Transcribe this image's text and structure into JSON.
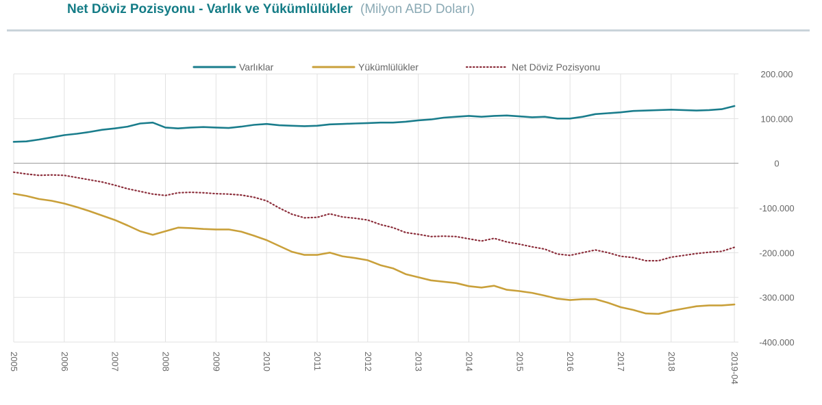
{
  "header": {
    "title": "Net Döviz Pozisyonu - Varlık ve Yükümlülükler",
    "unit": "(Milyon ABD Doları)"
  },
  "chart_data": {
    "type": "line",
    "y_ticks": [
      200000,
      100000,
      0,
      -100000,
      -200000,
      -300000,
      -400000
    ],
    "y_tick_labels": [
      "200.000",
      "100.000",
      "0",
      "-100.000",
      "-200.000",
      "-300.000",
      "-400.000"
    ],
    "ylim": [
      -400000,
      200000
    ],
    "x_ticks": [
      "2005",
      "2006",
      "2007",
      "2008",
      "2009",
      "2010",
      "2011",
      "2012",
      "2013",
      "2014",
      "2015",
      "2016",
      "2017",
      "2018",
      "2019-04"
    ],
    "x_tick_positions": [
      2005,
      2006,
      2007,
      2008,
      2009,
      2010,
      2011,
      2012,
      2013,
      2014,
      2015,
      2016,
      2017,
      2018,
      2019.25
    ],
    "xlim": [
      2005,
      2019.33
    ],
    "grid": true,
    "legend_position": "top",
    "x": [
      2005,
      2005.25,
      2005.5,
      2005.75,
      2006,
      2006.25,
      2006.5,
      2006.75,
      2007,
      2007.25,
      2007.5,
      2007.75,
      2008,
      2008.25,
      2008.5,
      2008.75,
      2009,
      2009.25,
      2009.5,
      2009.75,
      2010,
      2010.25,
      2010.5,
      2010.75,
      2011,
      2011.25,
      2011.5,
      2011.75,
      2012,
      2012.25,
      2012.5,
      2012.75,
      2013,
      2013.25,
      2013.5,
      2013.75,
      2014,
      2014.25,
      2014.5,
      2014.75,
      2015,
      2015.25,
      2015.5,
      2015.75,
      2016,
      2016.25,
      2016.5,
      2016.75,
      2017,
      2017.25,
      2017.5,
      2017.75,
      2018,
      2018.25,
      2018.5,
      2018.75,
      2019,
      2019.25
    ],
    "series": [
      {
        "name": "Varlıklar",
        "color": "#1a7d8c",
        "style": "solid",
        "values": [
          48000,
          49000,
          53000,
          58000,
          63000,
          66000,
          70000,
          75000,
          78000,
          82000,
          89000,
          91000,
          80000,
          78000,
          80000,
          81000,
          80000,
          79000,
          82000,
          86000,
          88000,
          85000,
          84000,
          83000,
          84000,
          87000,
          88000,
          89000,
          90000,
          91000,
          91000,
          93000,
          96000,
          98000,
          102000,
          104000,
          106000,
          104000,
          106000,
          107000,
          105000,
          103000,
          104000,
          100000,
          100000,
          104000,
          110000,
          112000,
          114000,
          117000,
          118000,
          119000,
          120000,
          119000,
          118000,
          119000,
          121000,
          128000
        ]
      },
      {
        "name": "Yükümlülükler",
        "color": "#c9a03a",
        "style": "solid",
        "values": [
          -68000,
          -73000,
          -80000,
          -84000,
          -90000,
          -98000,
          -107000,
          -117000,
          -127000,
          -139000,
          -152000,
          -160000,
          -152000,
          -144000,
          -145000,
          -147000,
          -148000,
          -148000,
          -153000,
          -162000,
          -172000,
          -185000,
          -198000,
          -205000,
          -205000,
          -200000,
          -208000,
          -212000,
          -217000,
          -228000,
          -235000,
          -248000,
          -255000,
          -262000,
          -265000,
          -268000,
          -275000,
          -278000,
          -274000,
          -283000,
          -286000,
          -290000,
          -296000,
          -303000,
          -306000,
          -304000,
          -304000,
          -312000,
          -322000,
          -328000,
          -336000,
          -337000,
          -330000,
          -325000,
          -320000,
          -318000,
          -318000,
          -316000
        ]
      },
      {
        "name": "Net Döviz Pozisyonu",
        "color": "#8b2d3a",
        "style": "dotted",
        "values": [
          -20000,
          -24000,
          -27000,
          -26000,
          -27000,
          -32000,
          -37000,
          -42000,
          -49000,
          -57000,
          -63000,
          -69000,
          -72000,
          -66000,
          -65000,
          -66000,
          -68000,
          -69000,
          -71000,
          -76000,
          -84000,
          -100000,
          -114000,
          -122000,
          -121000,
          -113000,
          -120000,
          -123000,
          -127000,
          -137000,
          -144000,
          -155000,
          -159000,
          -164000,
          -163000,
          -164000,
          -169000,
          -174000,
          -168000,
          -176000,
          -181000,
          -187000,
          -192000,
          -203000,
          -206000,
          -200000,
          -194000,
          -200000,
          -208000,
          -211000,
          -218000,
          -218000,
          -210000,
          -206000,
          -202000,
          -199000,
          -197000,
          -188000
        ]
      }
    ]
  }
}
